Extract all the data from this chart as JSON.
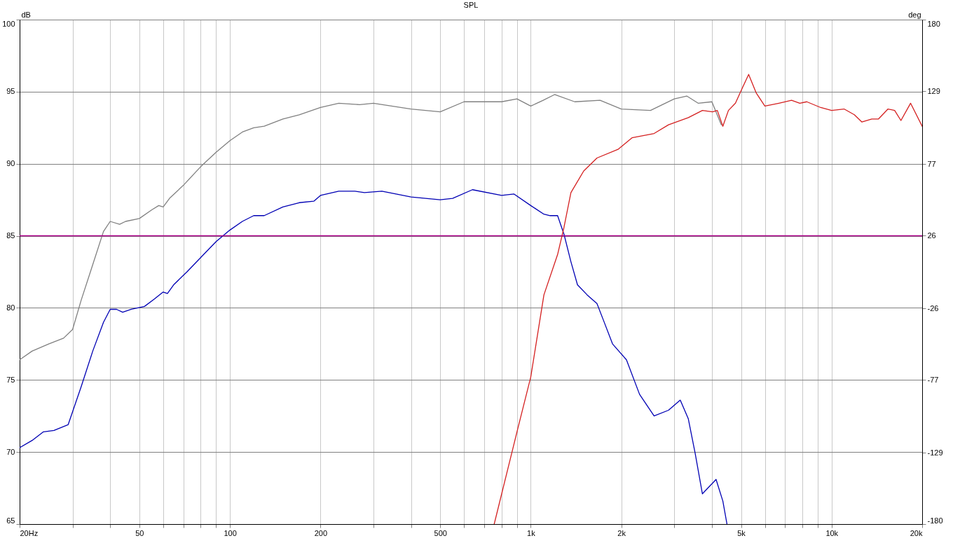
{
  "chart_data": {
    "type": "line",
    "title": "SPL",
    "ylabel": "dB",
    "y2label": "deg",
    "x": [
      20,
      22,
      25,
      28,
      30,
      32,
      35,
      38,
      40,
      43,
      45,
      50,
      55,
      58,
      60,
      63,
      70,
      80,
      90,
      100,
      110,
      120,
      130,
      150,
      170,
      200,
      230,
      270,
      300,
      400,
      500,
      600,
      800,
      900,
      1000,
      1100,
      1200,
      1400,
      1700,
      2000,
      2500,
      3000,
      3300,
      3600,
      4000,
      4300
    ],
    "series": [
      {
        "color": "#808080",
        "values": [
          76.4,
          77.0,
          77.5,
          77.9,
          78.5,
          80.5,
          83.0,
          85.3,
          86.0,
          85.8,
          86.0,
          86.2,
          86.8,
          87.1,
          87.0,
          87.6,
          88.5,
          89.8,
          90.8,
          91.6,
          92.2,
          92.5,
          92.6,
          93.1,
          93.4,
          93.9,
          94.2,
          94.1,
          94.2,
          93.8,
          93.6,
          94.3,
          94.3,
          94.5,
          94.0,
          94.4,
          94.8,
          94.3,
          94.4,
          93.8,
          93.7,
          94.5,
          94.7,
          94.2,
          94.3,
          92.7
        ]
      },
      {
        "color": "#0000b4",
        "x": [
          20,
          22,
          24,
          26,
          29,
          32,
          35,
          38,
          40,
          42,
          44,
          47,
          52,
          56,
          60,
          62,
          65,
          72,
          80,
          90,
          100,
          110,
          120,
          130,
          150,
          170,
          190,
          200,
          230,
          260,
          280,
          320,
          400,
          500,
          550,
          640,
          800,
          880,
          1000,
          1106,
          1160,
          1228,
          1290,
          1360,
          1430,
          1540,
          1660,
          1740,
          1870,
          2080,
          2300,
          2570,
          2870,
          3140,
          3340,
          3520,
          3720,
          3920,
          4130,
          4350,
          4490
        ],
        "values": [
          70.3,
          70.8,
          71.4,
          71.5,
          71.9,
          74.5,
          77.0,
          79.0,
          79.9,
          79.9,
          79.7,
          79.9,
          80.1,
          80.6,
          81.1,
          81.0,
          81.6,
          82.5,
          83.5,
          84.6,
          85.4,
          86.0,
          86.4,
          86.4,
          87.0,
          87.3,
          87.4,
          87.8,
          88.1,
          88.1,
          88.0,
          88.1,
          87.7,
          87.5,
          87.6,
          88.2,
          87.8,
          87.9,
          87.1,
          86.5,
          86.4,
          86.4,
          85.1,
          83.2,
          81.6,
          80.9,
          80.3,
          79.2,
          77.5,
          76.4,
          74.0,
          72.5,
          72.9,
          73.6,
          72.3,
          69.9,
          67.1,
          67.6,
          68.1,
          66.6,
          65.0
        ]
      },
      {
        "color": "#d42020",
        "x": [
          756,
          900,
          1000,
          1106,
          1228,
          1290,
          1360,
          1500,
          1660,
          1950,
          2170,
          2570,
          2870,
          3340,
          3720,
          4020,
          4170,
          4350,
          4540,
          4790,
          5060,
          5300,
          5620,
          6000,
          6680,
          7360,
          7840,
          8270,
          9200,
          10000,
          11000,
          11900,
          12600,
          13600,
          14300,
          15400,
          16200,
          17000,
          18300,
          20000
        ],
        "values": [
          65.0,
          71.4,
          75.2,
          80.9,
          83.7,
          85.6,
          88.0,
          89.5,
          90.4,
          91.0,
          91.8,
          92.1,
          92.7,
          93.2,
          93.7,
          93.6,
          93.7,
          92.6,
          93.7,
          94.2,
          95.3,
          96.2,
          94.9,
          94.0,
          94.2,
          94.4,
          94.2,
          94.3,
          93.9,
          93.7,
          93.8,
          93.4,
          92.9,
          93.1,
          93.1,
          93.8,
          93.7,
          93.0,
          94.2,
          92.6
        ]
      }
    ],
    "log": "x",
    "grid": true,
    "xlim": [
      20,
      20000
    ],
    "xticks": [
      {
        "value": 20,
        "label": "20Hz"
      },
      {
        "value": 30,
        "label": null
      },
      {
        "value": 40,
        "label": null
      },
      50,
      {
        "value": 60,
        "label": null
      },
      {
        "value": 70,
        "label": null
      },
      {
        "value": 80,
        "label": null
      },
      {
        "value": 90,
        "label": null
      },
      100,
      200,
      {
        "value": 300,
        "label": null
      },
      {
        "value": 400,
        "label": null
      },
      500,
      {
        "value": 600,
        "label": null
      },
      {
        "value": 700,
        "label": null
      },
      {
        "value": 800,
        "label": null
      },
      {
        "value": 900,
        "label": null
      },
      {
        "value": 1000,
        "label": "1k"
      },
      {
        "value": 2000,
        "label": "2k"
      },
      {
        "value": 3000,
        "label": null
      },
      {
        "value": 4000,
        "label": null
      },
      {
        "value": 5000,
        "label": "5k"
      },
      {
        "value": 6000,
        "label": null
      },
      {
        "value": 7000,
        "label": null
      },
      {
        "value": 8000,
        "label": null
      },
      {
        "value": 9000,
        "label": null
      },
      {
        "value": 10000,
        "label": "10k"
      },
      {
        "value": 20000,
        "label": "20k"
      }
    ],
    "ylim": [
      65,
      100
    ],
    "yticks": [
      65,
      70,
      75,
      80,
      85,
      90,
      95,
      100
    ],
    "y2lim": [
      -180,
      180
    ],
    "y2ticks": [
      -180,
      -129,
      -77,
      -26,
      26,
      77,
      129,
      180
    ],
    "ref_lines": [
      {
        "axis": "y",
        "value": 85,
        "color": "#b0008c"
      }
    ]
  }
}
